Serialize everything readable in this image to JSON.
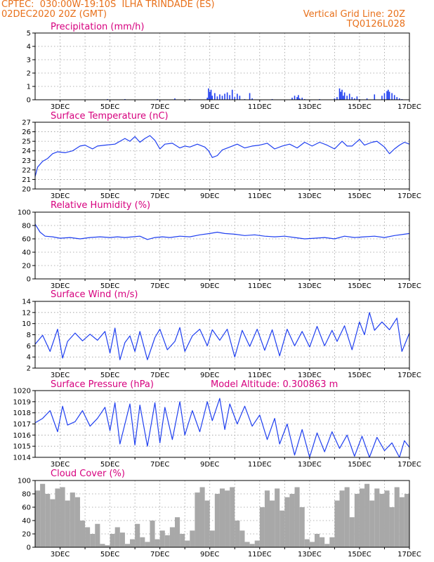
{
  "header": {
    "line1": "CPTEC:  030:00W-19:10S  ILHA TRINDADE (ES)",
    "line2": "02DEC2020 20Z (GMT)",
    "right1": "Vertical Grid Line: 20Z",
    "right2": "TQ0126L028"
  },
  "colors": {
    "series": "#1f3ff0",
    "cloud": "#a8a8a8",
    "title": "#d6007e",
    "header": "#e8701a"
  },
  "chart_data": [
    {
      "type": "bar",
      "title": "Precipitation (mm/h)",
      "ylim": [
        0,
        5
      ],
      "yticks": [
        0,
        1,
        2,
        3,
        4,
        5
      ],
      "xlim": [
        2.0,
        17.0
      ],
      "date_labels": [
        "3DEC",
        "5DEC",
        "7DEC",
        "9DEC",
        "11DEC",
        "13DEC",
        "15DEC",
        "17DEC"
      ],
      "x": [
        4.9,
        5.6,
        6.9,
        7.6,
        8.2,
        8.9,
        8.95,
        9.0,
        9.05,
        9.1,
        9.2,
        9.3,
        9.4,
        9.5,
        9.6,
        9.7,
        9.8,
        9.9,
        10.0,
        10.1,
        10.2,
        10.4,
        10.6,
        10.7,
        11.5,
        12.3,
        12.4,
        12.5,
        12.55,
        12.6,
        12.7,
        12.8,
        13.4,
        14.0,
        14.1,
        14.2,
        14.25,
        14.3,
        14.35,
        14.4,
        14.5,
        14.6,
        14.7,
        14.8,
        14.9,
        15.0,
        15.3,
        15.6,
        15.9,
        16.0,
        16.1,
        16.15,
        16.2,
        16.3,
        16.4,
        16.5,
        16.6,
        16.7
      ],
      "values": [
        0.05,
        0.05,
        0.05,
        0.1,
        0.05,
        0.15,
        0.85,
        0.6,
        0.75,
        0.3,
        0.5,
        0.25,
        0.4,
        0.3,
        0.45,
        0.55,
        0.35,
        0.75,
        0.2,
        0.45,
        0.3,
        0.05,
        0.5,
        0.1,
        0.05,
        0.15,
        0.3,
        0.2,
        0.35,
        0.1,
        0.15,
        0.05,
        0.05,
        0.1,
        0.2,
        0.85,
        0.6,
        0.75,
        0.3,
        0.55,
        0.3,
        0.45,
        0.2,
        0.1,
        0.25,
        0.05,
        0.1,
        0.4,
        0.3,
        0.5,
        0.65,
        0.75,
        0.6,
        0.5,
        0.35,
        0.2,
        0.1,
        0.05
      ]
    },
    {
      "type": "line",
      "title": "Surface Temperature (nC)",
      "ylim": [
        20,
        27
      ],
      "yticks": [
        20,
        21,
        22,
        23,
        24,
        25,
        26,
        27
      ],
      "xlim": [
        2.0,
        17.0
      ],
      "date_labels": [
        "3DEC",
        "5DEC",
        "7DEC",
        "9DEC",
        "11DEC",
        "13DEC",
        "15DEC",
        "17DEC"
      ],
      "x": [
        2.0,
        2.1,
        2.3,
        2.5,
        2.7,
        2.9,
        3.2,
        3.5,
        3.8,
        4.0,
        4.3,
        4.5,
        4.8,
        5.2,
        5.4,
        5.6,
        5.8,
        6.0,
        6.2,
        6.4,
        6.6,
        6.8,
        7.0,
        7.2,
        7.5,
        7.8,
        8.0,
        8.2,
        8.5,
        8.8,
        8.95,
        9.1,
        9.3,
        9.5,
        9.8,
        10.1,
        10.4,
        10.7,
        11.0,
        11.3,
        11.6,
        11.9,
        12.2,
        12.5,
        12.8,
        13.1,
        13.4,
        13.7,
        14.0,
        14.3,
        14.5,
        14.7,
        15.0,
        15.2,
        15.5,
        15.7,
        16.0,
        16.2,
        16.4,
        16.6,
        16.8,
        17.0
      ],
      "values": [
        21.3,
        22.3,
        22.9,
        23.2,
        23.7,
        23.9,
        23.8,
        24.0,
        24.5,
        24.6,
        24.2,
        24.5,
        24.6,
        24.7,
        25.0,
        25.3,
        25.0,
        25.5,
        24.9,
        25.3,
        25.6,
        25.1,
        24.2,
        24.7,
        24.8,
        24.3,
        24.5,
        24.4,
        24.7,
        24.4,
        24.0,
        23.3,
        23.5,
        24.1,
        24.4,
        24.7,
        24.3,
        24.5,
        24.6,
        24.8,
        24.2,
        24.5,
        24.7,
        24.3,
        24.9,
        24.5,
        24.9,
        24.6,
        24.2,
        25.0,
        24.5,
        24.5,
        25.2,
        24.6,
        24.9,
        25.0,
        24.4,
        23.7,
        24.2,
        24.6,
        24.9,
        24.7
      ]
    },
    {
      "type": "line",
      "title": "Relative Humidity (%)",
      "ylim": [
        0,
        100
      ],
      "yticks": [
        0,
        20,
        40,
        60,
        80,
        100
      ],
      "xlim": [
        2.0,
        17.0
      ],
      "date_labels": [
        "3DEC",
        "5DEC",
        "7DEC",
        "9DEC",
        "11DEC",
        "13DEC",
        "15DEC",
        "17DEC"
      ],
      "x": [
        2.0,
        2.2,
        2.4,
        2.7,
        3.0,
        3.4,
        3.8,
        4.2,
        4.6,
        5.0,
        5.3,
        5.6,
        5.9,
        6.2,
        6.5,
        6.8,
        7.1,
        7.4,
        7.8,
        8.2,
        8.6,
        9.0,
        9.3,
        9.6,
        10.0,
        10.4,
        10.8,
        11.2,
        11.6,
        12.0,
        12.4,
        12.8,
        13.2,
        13.6,
        14.0,
        14.4,
        14.8,
        15.2,
        15.6,
        16.0,
        16.4,
        16.8,
        17.0
      ],
      "values": [
        82,
        70,
        64,
        63,
        61,
        62,
        60,
        62,
        63,
        62,
        63,
        62,
        63,
        64,
        59,
        62,
        63,
        62,
        64,
        63,
        66,
        68,
        70,
        68,
        67,
        65,
        66,
        64,
        63,
        64,
        62,
        60,
        61,
        62,
        60,
        64,
        62,
        63,
        64,
        62,
        65,
        67,
        68
      ]
    },
    {
      "type": "line",
      "title": "Surface Wind (m/s)",
      "ylim": [
        2,
        14
      ],
      "yticks": [
        2,
        4,
        6,
        8,
        10,
        12,
        14
      ],
      "xlim": [
        2.0,
        17.0
      ],
      "date_labels": [
        "3DEC",
        "5DEC",
        "7DEC",
        "9DEC",
        "11DEC",
        "13DEC",
        "15DEC",
        "17DEC"
      ],
      "x": [
        2.0,
        2.3,
        2.6,
        2.9,
        3.1,
        3.3,
        3.6,
        3.9,
        4.2,
        4.5,
        4.8,
        5.0,
        5.2,
        5.4,
        5.6,
        5.8,
        6.0,
        6.2,
        6.5,
        6.8,
        7.0,
        7.3,
        7.6,
        7.8,
        8.0,
        8.3,
        8.6,
        8.9,
        9.1,
        9.4,
        9.7,
        10.0,
        10.3,
        10.6,
        10.9,
        11.2,
        11.5,
        11.8,
        12.1,
        12.4,
        12.7,
        13.0,
        13.3,
        13.6,
        13.9,
        14.1,
        14.4,
        14.7,
        15.0,
        15.2,
        15.4,
        15.6,
        15.9,
        16.2,
        16.5,
        16.7,
        17.0
      ],
      "values": [
        6.3,
        7.9,
        5.0,
        9.0,
        3.8,
        6.8,
        8.3,
        6.9,
        8.1,
        7.0,
        8.6,
        4.7,
        9.2,
        3.5,
        6.6,
        7.8,
        5.0,
        8.6,
        3.5,
        7.5,
        9.0,
        5.3,
        6.8,
        9.3,
        5.0,
        7.8,
        9.0,
        6.0,
        8.9,
        7.0,
        9.0,
        4.0,
        8.8,
        5.9,
        9.0,
        5.2,
        8.9,
        4.2,
        9.0,
        6.0,
        8.6,
        5.8,
        9.5,
        6.0,
        8.8,
        6.8,
        9.6,
        5.3,
        10.3,
        8.0,
        12.0,
        8.8,
        10.3,
        8.9,
        11.0,
        5.0,
        8.3
      ]
    },
    {
      "type": "line",
      "title": "Surface Pressure (hPa)",
      "annotation": "Model Altitude: 0.300863 m",
      "ylim": [
        1014,
        1020
      ],
      "yticks": [
        1014,
        1015,
        1016,
        1017,
        1018,
        1019,
        1020
      ],
      "xlim": [
        2.0,
        17.0
      ],
      "date_labels": [
        "3DEC",
        "5DEC",
        "7DEC",
        "9DEC",
        "11DEC",
        "13DEC",
        "15DEC",
        "17DEC"
      ],
      "x": [
        2.0,
        2.3,
        2.6,
        2.9,
        3.1,
        3.3,
        3.6,
        3.9,
        4.2,
        4.5,
        4.8,
        5.0,
        5.2,
        5.4,
        5.6,
        5.8,
        6.0,
        6.2,
        6.5,
        6.8,
        7.0,
        7.2,
        7.5,
        7.8,
        8.0,
        8.3,
        8.6,
        8.9,
        9.1,
        9.4,
        9.6,
        9.8,
        10.1,
        10.4,
        10.7,
        11.0,
        11.3,
        11.6,
        11.8,
        12.1,
        12.4,
        12.7,
        13.0,
        13.3,
        13.6,
        13.9,
        14.2,
        14.5,
        14.8,
        15.1,
        15.4,
        15.7,
        16.0,
        16.3,
        16.6,
        16.8,
        17.0
      ],
      "values": [
        1017.1,
        1017.5,
        1018.2,
        1016.3,
        1018.6,
        1016.9,
        1017.2,
        1018.2,
        1016.8,
        1017.5,
        1018.5,
        1016.4,
        1018.9,
        1015.2,
        1017.0,
        1018.8,
        1015.1,
        1018.7,
        1015.0,
        1018.9,
        1015.3,
        1018.5,
        1015.6,
        1019.0,
        1016.0,
        1018.2,
        1016.3,
        1019.0,
        1017.3,
        1019.3,
        1016.5,
        1018.8,
        1017.0,
        1018.6,
        1016.8,
        1017.8,
        1015.6,
        1017.5,
        1015.2,
        1017.0,
        1014.2,
        1016.5,
        1014.0,
        1016.2,
        1014.5,
        1016.3,
        1014.8,
        1016.0,
        1014.1,
        1015.9,
        1014.0,
        1015.8,
        1014.6,
        1015.3,
        1014.0,
        1015.5,
        1014.9
      ]
    },
    {
      "type": "bar",
      "title": "Cloud Cover (%)",
      "ylim": [
        0,
        100
      ],
      "yticks": [
        0,
        20,
        40,
        60,
        80,
        100
      ],
      "xlim": [
        2.0,
        17.0
      ],
      "date_labels": [
        "3DEC",
        "5DEC",
        "7DEC",
        "9DEC",
        "11DEC",
        "13DEC",
        "15DEC",
        "17DEC"
      ],
      "x": [
        2.0,
        2.2,
        2.4,
        2.6,
        2.8,
        3.0,
        3.2,
        3.4,
        3.6,
        3.8,
        4.0,
        4.2,
        4.4,
        4.6,
        4.8,
        5.0,
        5.2,
        5.4,
        5.6,
        5.8,
        6.0,
        6.2,
        6.4,
        6.6,
        6.8,
        7.0,
        7.2,
        7.4,
        7.6,
        7.8,
        8.0,
        8.2,
        8.4,
        8.6,
        8.8,
        9.0,
        9.2,
        9.4,
        9.6,
        9.8,
        10.0,
        10.2,
        10.4,
        10.6,
        10.8,
        11.0,
        11.2,
        11.4,
        11.6,
        11.8,
        12.0,
        12.2,
        12.4,
        12.6,
        12.8,
        13.0,
        13.2,
        13.4,
        13.6,
        13.8,
        14.0,
        14.2,
        14.4,
        14.6,
        14.8,
        15.0,
        15.2,
        15.4,
        15.6,
        15.8,
        16.0,
        16.2,
        16.4,
        16.6,
        16.8
      ],
      "values": [
        85,
        95,
        80,
        72,
        88,
        90,
        70,
        82,
        75,
        40,
        30,
        20,
        35,
        5,
        3,
        20,
        30,
        22,
        5,
        12,
        35,
        15,
        8,
        40,
        12,
        25,
        18,
        30,
        45,
        20,
        10,
        25,
        82,
        90,
        70,
        25,
        80,
        88,
        85,
        90,
        40,
        25,
        8,
        5,
        10,
        60,
        85,
        70,
        88,
        55,
        75,
        80,
        90,
        60,
        12,
        8,
        20,
        15,
        5,
        15,
        70,
        85,
        90,
        45,
        80,
        88,
        95,
        70,
        88,
        80,
        85,
        60,
        90,
        75,
        80
      ]
    }
  ]
}
